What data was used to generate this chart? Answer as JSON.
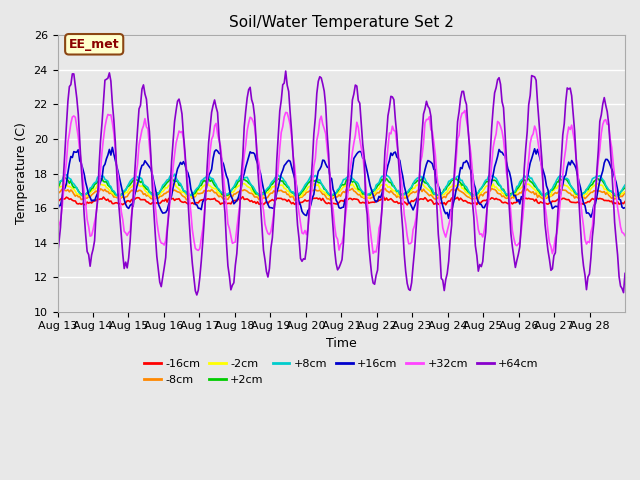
{
  "title": "Soil/Water Temperature Set 2",
  "xlabel": "Time",
  "ylabel": "Temperature (C)",
  "ylim": [
    10,
    26
  ],
  "xlim": [
    0,
    16
  ],
  "bg_color": "#e8e8e8",
  "grid_color": "#ffffff",
  "annotation_text": "EE_met",
  "annotation_bg": "#ffffcc",
  "annotation_border": "#8b4513",
  "series": {
    "-16cm": {
      "color": "#ff0000",
      "lw": 1.2
    },
    "-8cm": {
      "color": "#ff8800",
      "lw": 1.2
    },
    "-2cm": {
      "color": "#ffff00",
      "lw": 1.2
    },
    "+2cm": {
      "color": "#00cc00",
      "lw": 1.2
    },
    "+8cm": {
      "color": "#00cccc",
      "lw": 1.2
    },
    "+16cm": {
      "color": "#0000cc",
      "lw": 1.2
    },
    "+32cm": {
      "color": "#ff44ff",
      "lw": 1.2
    },
    "+64cm": {
      "color": "#8800cc",
      "lw": 1.2
    }
  },
  "tick_labels": [
    "Aug 13",
    "Aug 14",
    "Aug 15",
    "Aug 16",
    "Aug 17",
    "Aug 18",
    "Aug 19",
    "Aug 20",
    "Aug 21",
    "Aug 22",
    "Aug 23",
    "Aug 24",
    "Aug 25",
    "Aug 26",
    "Aug 27",
    "Aug 28"
  ],
  "yticks": [
    10,
    12,
    14,
    16,
    18,
    20,
    22,
    24,
    26
  ]
}
